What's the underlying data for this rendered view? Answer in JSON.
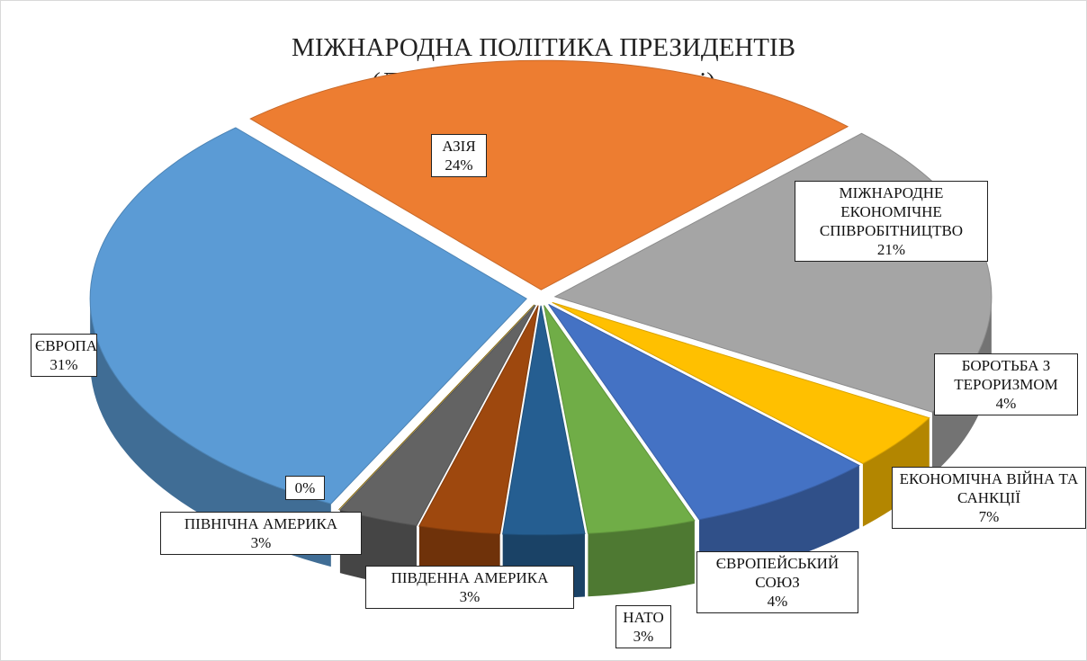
{
  "chart_data": {
    "type": "pie",
    "title": "МІЖНАРОДНА ПОЛІТИКА ПРЕЗИДЕНТІВ",
    "subtitle": "(Дольова вага сфер діяльності)",
    "categories": [
      "АЗІЯ",
      "МІЖНАРОДНЕ ЕКОНОМІЧНЕ СПІВРОБІТНИЦТВО",
      "БОРОТЬБА З ТЕРОРИЗМОМ",
      "ЕКОНОМІЧНА ВІЙНА ТА САНКЦІЇ",
      "ЄВРОПЕЙСЬКИЙ СОЮЗ",
      "НАТО",
      "ПІВДЕННА АМЕРИКА",
      "ПІВНІЧНА АМЕРИКА",
      null,
      "ЄВРОПА"
    ],
    "values": [
      24,
      21,
      4,
      7,
      4,
      3,
      3,
      3,
      0,
      31
    ],
    "value_labels": [
      "24%",
      "21%",
      "4%",
      "7%",
      "4%",
      "3%",
      "3%",
      "3%",
      "0%",
      "31%"
    ],
    "colors": [
      "#ED7D31",
      "#A5A5A5",
      "#FFC000",
      "#4472C4",
      "#70AD47",
      "#255E91",
      "#9E480E",
      "#636363",
      "#997300",
      "#5B9BD5"
    ]
  }
}
